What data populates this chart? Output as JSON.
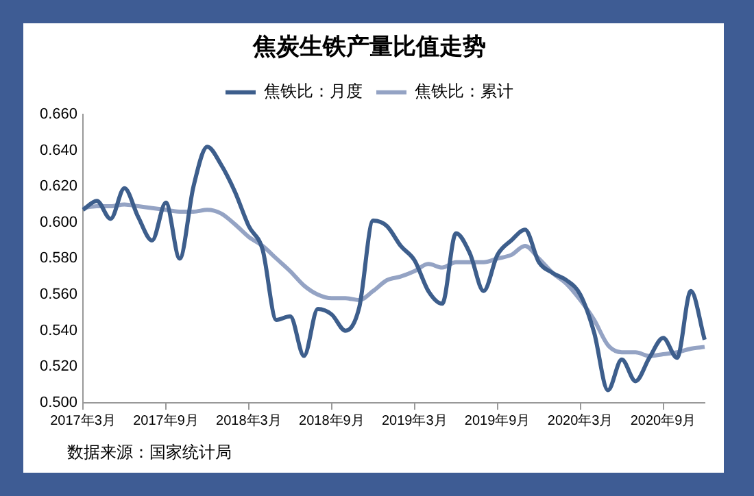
{
  "chart_data": {
    "type": "line",
    "title": "焦炭生铁产量比值走势",
    "categories": [
      "2017年3月",
      null,
      null,
      null,
      null,
      null,
      "2017年9月",
      null,
      null,
      null,
      null,
      null,
      "2018年3月",
      null,
      null,
      null,
      null,
      null,
      "2018年9月",
      null,
      null,
      null,
      null,
      null,
      "2019年3月",
      null,
      null,
      null,
      null,
      null,
      "2019年9月",
      null,
      null,
      null,
      null,
      null,
      "2020年3月",
      null,
      null,
      null,
      null,
      null,
      "2020年9月",
      null,
      null,
      null
    ],
    "series": [
      {
        "name": "焦铁比：月度",
        "color": "#3d5e8c",
        "values": [
          0.607,
          0.612,
          0.602,
          0.619,
          0.603,
          0.59,
          0.611,
          0.58,
          0.62,
          0.642,
          0.632,
          0.617,
          0.598,
          0.585,
          0.546,
          0.548,
          0.526,
          0.552,
          0.549,
          0.54,
          0.553,
          0.601,
          0.598,
          0.587,
          0.579,
          0.562,
          0.555,
          0.594,
          0.583,
          0.562,
          0.582,
          0.59,
          0.596,
          0.578,
          0.572,
          0.568,
          0.56,
          0.539,
          0.507,
          0.524,
          0.512,
          0.525,
          0.536,
          0.525,
          0.562,
          0.535
        ]
      },
      {
        "name": "焦铁比：累计",
        "color": "#94a3c4",
        "values": [
          0.608,
          0.609,
          0.609,
          0.61,
          0.609,
          0.608,
          0.607,
          0.606,
          0.606,
          0.607,
          0.605,
          0.599,
          0.592,
          0.587,
          0.58,
          0.573,
          0.565,
          0.56,
          0.558,
          0.558,
          0.557,
          0.562,
          0.568,
          0.57,
          0.573,
          0.577,
          0.575,
          0.578,
          0.578,
          0.578,
          0.58,
          0.582,
          0.587,
          0.58,
          0.572,
          0.566,
          0.557,
          0.546,
          0.532,
          0.528,
          0.528,
          0.526,
          0.527,
          0.528,
          0.53,
          0.531
        ]
      }
    ],
    "ylim": [
      0.5,
      0.66
    ],
    "yticks": [
      {
        "value": 0.5,
        "label": "0.500"
      },
      {
        "value": 0.52,
        "label": "0.520"
      },
      {
        "value": 0.54,
        "label": "0.540"
      },
      {
        "value": 0.56,
        "label": "0.560"
      },
      {
        "value": 0.58,
        "label": "0.580"
      },
      {
        "value": 0.6,
        "label": "0.600"
      },
      {
        "value": 0.62,
        "label": "0.620"
      },
      {
        "value": 0.64,
        "label": "0.640"
      },
      {
        "value": 0.66,
        "label": "0.660"
      }
    ],
    "grid": false,
    "legend": "top",
    "marker": "none",
    "line_style": "solid",
    "annotations": [
      "数据来源：国家统计局"
    ]
  }
}
